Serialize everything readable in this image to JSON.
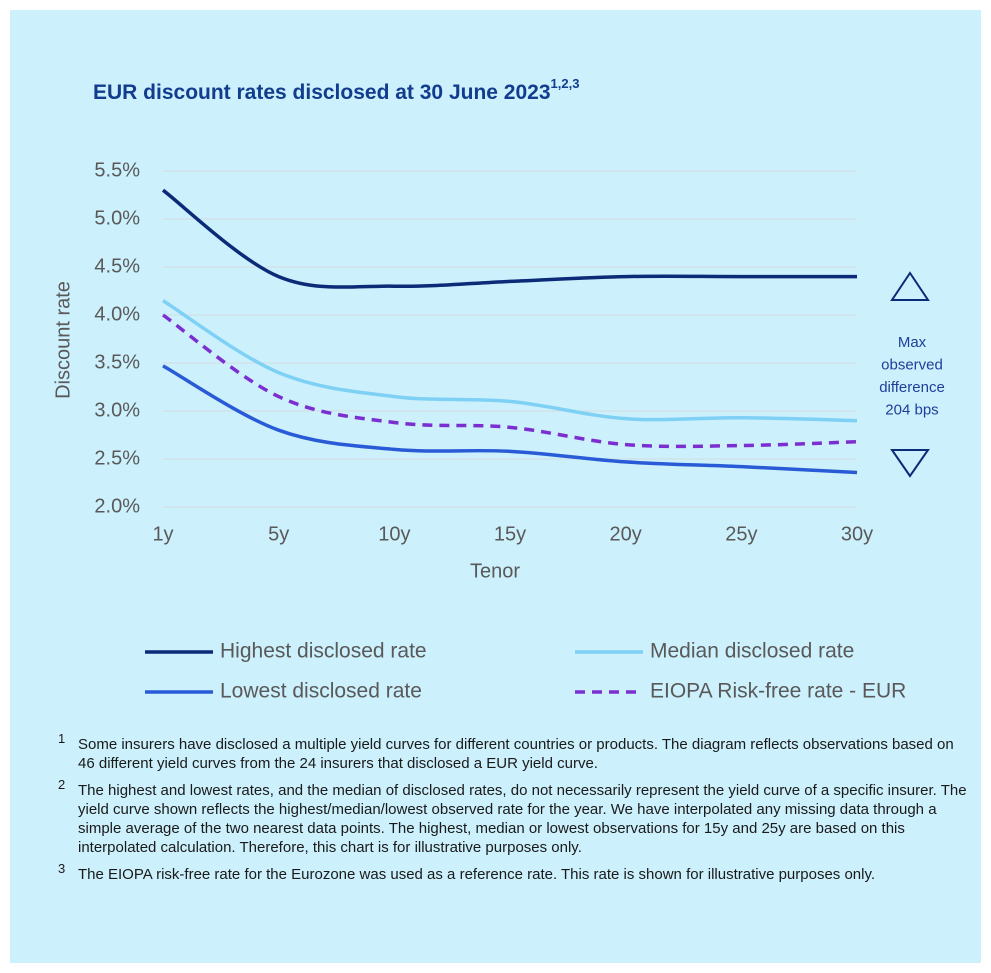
{
  "chart_data": {
    "type": "line",
    "title": "EUR discount rates disclosed at 30 June 2023",
    "title_superscript": "1,2,3",
    "y_label": "Discount rate",
    "x_label": "Tenor",
    "categories": [
      "1y",
      "5y",
      "10y",
      "15y",
      "20y",
      "25y",
      "30y"
    ],
    "ylim": [
      2.0,
      5.5
    ],
    "yticks": [
      {
        "value": 2.0,
        "label": "2.0%"
      },
      {
        "value": 2.5,
        "label": "2.5%"
      },
      {
        "value": 3.0,
        "label": "3.0%"
      },
      {
        "value": 3.5,
        "label": "3.5%"
      },
      {
        "value": 4.0,
        "label": "4.0%"
      },
      {
        "value": 4.5,
        "label": "4.5%"
      },
      {
        "value": 5.0,
        "label": "5.0%"
      },
      {
        "value": 5.5,
        "label": "5.5%"
      }
    ],
    "grid": true,
    "series": [
      {
        "name": "Highest disclosed rate",
        "color": "#0b2a78",
        "dashed": false,
        "values": [
          5.3,
          4.4,
          4.3,
          4.35,
          4.4,
          4.4,
          4.4
        ]
      },
      {
        "name": "Median disclosed rate",
        "color": "#7fd0f5",
        "dashed": false,
        "values": [
          4.15,
          3.4,
          3.15,
          3.1,
          2.92,
          2.93,
          2.9
        ]
      },
      {
        "name": "Lowest disclosed rate",
        "color": "#2a5bd7",
        "dashed": false,
        "values": [
          3.47,
          2.8,
          2.6,
          2.58,
          2.47,
          2.42,
          2.36
        ]
      },
      {
        "name": "EIOPA Risk-free rate - EUR",
        "color": "#7b2fd1",
        "dashed": true,
        "values": [
          4.0,
          3.15,
          2.88,
          2.83,
          2.65,
          2.64,
          2.68
        ]
      }
    ],
    "annotation": [
      "Max",
      "observed",
      "difference",
      "204 bps"
    ]
  },
  "footnotes": [
    {
      "marker": "1",
      "text": "Some insurers have disclosed a multiple yield curves for different countries or products. The diagram reflects observations based on 46 different yield curves from the 24 insurers that disclosed a EUR yield curve."
    },
    {
      "marker": "2",
      "text": "The highest and lowest rates, and the median of disclosed rates, do not necessarily represent the yield curve of a specific insurer. The yield curve shown reflects the highest/median/lowest observed rate for the year. We have interpolated any missing data through a simple average of the two nearest data points. The highest, median or lowest observations for 15y and 25y are based on this interpolated calculation. Therefore, this chart is for illustrative purposes only."
    },
    {
      "marker": "3",
      "text": "The EIOPA risk-free rate for the Eurozone was used as a reference rate. This rate is shown for illustrative purposes only."
    }
  ]
}
